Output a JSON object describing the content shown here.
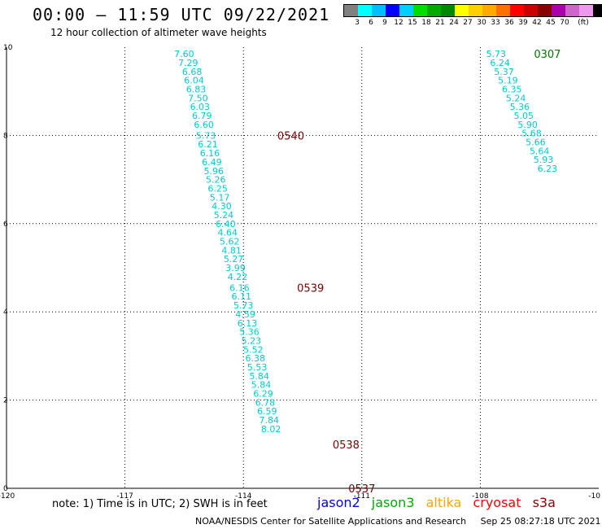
{
  "header": {
    "title": "00:00 – 11:59 UTC 09/22/2021",
    "subtitle": "12 hour collection of altimeter wave heights"
  },
  "legend": {
    "colors": [
      "#808080",
      "#00ffff",
      "#00bfff",
      "#0000ff",
      "#00cfff",
      "#00dd00",
      "#00aa00",
      "#008800",
      "#ffff00",
      "#ffd000",
      "#ffaa00",
      "#ff7000",
      "#ff0000",
      "#cc0000",
      "#880000",
      "#aa00aa",
      "#cc66cc",
      "#ee99ee",
      "#000000"
    ],
    "labels": [
      "3",
      "6",
      "9",
      "12",
      "15",
      "18",
      "21",
      "24",
      "27",
      "30",
      "33",
      "36",
      "39",
      "42",
      "45",
      "70",
      "(ft)"
    ]
  },
  "axes": {
    "x_labels": [
      "-120",
      "-117",
      "-114",
      "-111",
      "-108",
      "-10"
    ],
    "y_labels": [
      "10",
      "8",
      "6",
      "4",
      "2",
      "0"
    ]
  },
  "colors": {
    "swh": "#00cccc",
    "jason2": "#0000ff",
    "jason3": "#00aa00",
    "altika": "#ffa500",
    "cryosat": "#ff0000",
    "s3a": "#8b0000"
  },
  "tracks": [
    {
      "name": "track-left",
      "points": [
        {
          "lon": -115.5,
          "lat": 9.85,
          "v": "7.60"
        },
        {
          "lon": -115.4,
          "lat": 9.65,
          "v": "7.29"
        },
        {
          "lon": -115.3,
          "lat": 9.45,
          "v": "6.68"
        },
        {
          "lon": -115.25,
          "lat": 9.25,
          "v": "6.04"
        },
        {
          "lon": -115.2,
          "lat": 9.05,
          "v": "6.83"
        },
        {
          "lon": -115.15,
          "lat": 8.85,
          "v": "7.50"
        },
        {
          "lon": -115.1,
          "lat": 8.65,
          "v": "6.03"
        },
        {
          "lon": -115.05,
          "lat": 8.45,
          "v": "6.79"
        },
        {
          "lon": -115.0,
          "lat": 8.25,
          "v": "6.60"
        },
        {
          "lon": -114.95,
          "lat": 8.0,
          "v": "5.73"
        },
        {
          "lon": -114.9,
          "lat": 7.8,
          "v": "6.21"
        },
        {
          "lon": -114.85,
          "lat": 7.6,
          "v": "6.16"
        },
        {
          "lon": -114.8,
          "lat": 7.4,
          "v": "6.49"
        },
        {
          "lon": -114.75,
          "lat": 7.2,
          "v": "5.96"
        },
        {
          "lon": -114.7,
          "lat": 7.0,
          "v": "5.26"
        },
        {
          "lon": -114.65,
          "lat": 6.8,
          "v": "6.25"
        },
        {
          "lon": -114.6,
          "lat": 6.6,
          "v": "5.17"
        },
        {
          "lon": -114.55,
          "lat": 6.4,
          "v": "4.30"
        },
        {
          "lon": -114.5,
          "lat": 6.2,
          "v": "5.24"
        },
        {
          "lon": -114.45,
          "lat": 6.0,
          "v": "6.40"
        },
        {
          "lon": -114.4,
          "lat": 5.8,
          "v": "4.64"
        },
        {
          "lon": -114.35,
          "lat": 5.6,
          "v": "5.62"
        },
        {
          "lon": -114.3,
          "lat": 5.4,
          "v": "4.81"
        },
        {
          "lon": -114.25,
          "lat": 5.2,
          "v": "5.27"
        },
        {
          "lon": -114.2,
          "lat": 5.0,
          "v": "3.99"
        },
        {
          "lon": -114.15,
          "lat": 4.8,
          "v": "4.22"
        },
        {
          "lon": -114.1,
          "lat": 4.55,
          "v": "6.16"
        },
        {
          "lon": -114.05,
          "lat": 4.35,
          "v": "6.11"
        },
        {
          "lon": -114.0,
          "lat": 4.15,
          "v": "5.73"
        },
        {
          "lon": -113.95,
          "lat": 3.95,
          "v": "4.59"
        },
        {
          "lon": -113.9,
          "lat": 3.75,
          "v": "6.13"
        },
        {
          "lon": -113.85,
          "lat": 3.55,
          "v": "5.36"
        },
        {
          "lon": -113.8,
          "lat": 3.35,
          "v": "5.23"
        },
        {
          "lon": -113.75,
          "lat": 3.15,
          "v": "5.52"
        },
        {
          "lon": -113.7,
          "lat": 2.95,
          "v": "6.38"
        },
        {
          "lon": -113.65,
          "lat": 2.75,
          "v": "5.53"
        },
        {
          "lon": -113.6,
          "lat": 2.55,
          "v": "5.84"
        },
        {
          "lon": -113.55,
          "lat": 2.35,
          "v": "5.84"
        },
        {
          "lon": -113.5,
          "lat": 2.15,
          "v": "6.29"
        },
        {
          "lon": -113.45,
          "lat": 1.95,
          "v": "6.78"
        },
        {
          "lon": -113.4,
          "lat": 1.75,
          "v": "6.59"
        },
        {
          "lon": -113.35,
          "lat": 1.55,
          "v": "7.84"
        },
        {
          "lon": -113.3,
          "lat": 1.35,
          "v": "8.02"
        }
      ],
      "pass_times": [
        {
          "lon": -112.8,
          "lat": 8.0,
          "t": "0540"
        },
        {
          "lon": -112.3,
          "lat": 4.55,
          "t": "0539"
        },
        {
          "lon": -111.4,
          "lat": 1.0,
          "t": "0538"
        },
        {
          "lon": -111.0,
          "lat": 0.0,
          "t": "0537"
        }
      ]
    },
    {
      "name": "track-right",
      "points": [
        {
          "lon": -107.6,
          "lat": 9.85,
          "v": "5.73"
        },
        {
          "lon": -107.5,
          "lat": 9.65,
          "v": "6.24"
        },
        {
          "lon": -107.4,
          "lat": 9.45,
          "v": "5.37"
        },
        {
          "lon": -107.3,
          "lat": 9.25,
          "v": "5.19"
        },
        {
          "lon": -107.2,
          "lat": 9.05,
          "v": "6.35"
        },
        {
          "lon": -107.1,
          "lat": 8.85,
          "v": "5.24"
        },
        {
          "lon": -107.0,
          "lat": 8.65,
          "v": "5.36"
        },
        {
          "lon": -106.9,
          "lat": 8.45,
          "v": "5.05"
        },
        {
          "lon": -106.8,
          "lat": 8.25,
          "v": "5.90"
        },
        {
          "lon": -106.7,
          "lat": 8.05,
          "v": "5.68"
        },
        {
          "lon": -106.6,
          "lat": 7.85,
          "v": "5.66"
        },
        {
          "lon": -106.5,
          "lat": 7.65,
          "v": "5.64"
        },
        {
          "lon": -106.4,
          "lat": 7.45,
          "v": "5.93"
        },
        {
          "lon": -106.3,
          "lat": 7.25,
          "v": "6.23"
        }
      ],
      "pass_times": [
        {
          "lon": -106.3,
          "lat": 9.85,
          "t": "0307"
        }
      ]
    }
  ],
  "footer": {
    "note": "note: 1) Time is in UTC; 2) SWH is in feet",
    "satellites": [
      "jason2",
      "jason3",
      "altika",
      "cryosat",
      "s3a"
    ],
    "credit": "NOAA/NESDIS Center for Satellite Applications and Research",
    "timestamp": "Sep 25 08:27:18 UTC 2021"
  }
}
